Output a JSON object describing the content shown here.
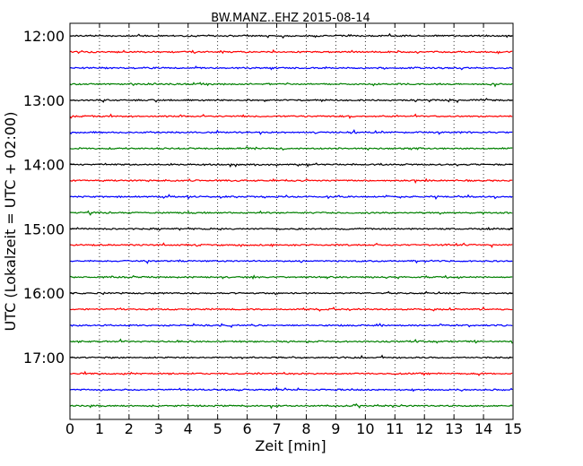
{
  "chart_data": {
    "type": "line",
    "title": "BW.MANZ..EHZ 2015-08-14",
    "xlabel": "Zeit  [min]",
    "ylabel": "UTC (Lokalzeit = UTC + 02:00)",
    "xlim": [
      0,
      15
    ],
    "x_ticks": [
      "0",
      "1",
      "2",
      "3",
      "4",
      "5",
      "6",
      "7",
      "8",
      "9",
      "10",
      "11",
      "12",
      "13",
      "14",
      "15"
    ],
    "y_ticks": [
      "12:00",
      "13:00",
      "14:00",
      "15:00",
      "16:00",
      "17:00"
    ],
    "grid": "vertical dotted at each minute",
    "trace_interval_min": 15,
    "trace_colors": [
      "#000000",
      "#ff0000",
      "#0000ff",
      "#008000"
    ],
    "traces": [
      {
        "start": "12:00",
        "color": "#000000"
      },
      {
        "start": "12:15",
        "color": "#ff0000"
      },
      {
        "start": "12:30",
        "color": "#0000ff"
      },
      {
        "start": "12:45",
        "color": "#008000"
      },
      {
        "start": "13:00",
        "color": "#000000"
      },
      {
        "start": "13:15",
        "color": "#ff0000"
      },
      {
        "start": "13:30",
        "color": "#0000ff"
      },
      {
        "start": "13:45",
        "color": "#008000"
      },
      {
        "start": "14:00",
        "color": "#000000"
      },
      {
        "start": "14:15",
        "color": "#ff0000"
      },
      {
        "start": "14:30",
        "color": "#0000ff"
      },
      {
        "start": "14:45",
        "color": "#008000"
      },
      {
        "start": "15:00",
        "color": "#000000"
      },
      {
        "start": "15:15",
        "color": "#ff0000"
      },
      {
        "start": "15:30",
        "color": "#0000ff"
      },
      {
        "start": "15:45",
        "color": "#008000"
      },
      {
        "start": "16:00",
        "color": "#000000"
      },
      {
        "start": "16:15",
        "color": "#ff0000"
      },
      {
        "start": "16:30",
        "color": "#0000ff"
      },
      {
        "start": "16:45",
        "color": "#008000"
      },
      {
        "start": "17:00",
        "color": "#000000"
      },
      {
        "start": "17:15",
        "color": "#ff0000"
      },
      {
        "start": "17:30",
        "color": "#0000ff"
      },
      {
        "start": "17:45",
        "color": "#008000"
      }
    ]
  }
}
